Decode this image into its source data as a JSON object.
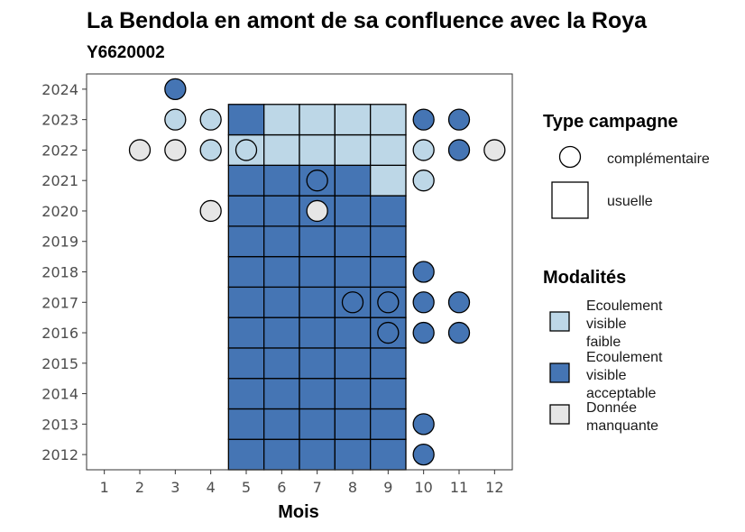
{
  "chart_data": {
    "type": "heatmap",
    "title": "La Bendola en amont de sa confluence avec la Roya",
    "subtitle": "Y6620002",
    "xlabel": "Mois",
    "ylabel": "",
    "x_ticks": [
      1,
      2,
      3,
      4,
      5,
      6,
      7,
      8,
      9,
      10,
      11,
      12
    ],
    "y_ticks": [
      2012,
      2013,
      2014,
      2015,
      2016,
      2017,
      2018,
      2019,
      2020,
      2021,
      2022,
      2023,
      2024
    ],
    "xlim": [
      0.5,
      12.5
    ],
    "ylim": [
      2011.5,
      2024.5
    ],
    "grid": false,
    "legend_position": "right",
    "colors": {
      "faible": "#bdd7e7",
      "acceptable": "#4575b4",
      "manquante": "#e6e6e6"
    },
    "legend": {
      "type_title": "Type campagne",
      "type_items": [
        {
          "shape": "circle",
          "label": "complémentaire"
        },
        {
          "shape": "square",
          "label": "usuelle"
        }
      ],
      "modal_title": "Modalités",
      "modal_items": [
        {
          "key": "faible",
          "lines": [
            "Ecoulement",
            "visible",
            "faible"
          ]
        },
        {
          "key": "acceptable",
          "lines": [
            "Ecoulement",
            "visible",
            "acceptable"
          ]
        },
        {
          "key": "manquante",
          "lines": [
            "Donnée",
            "manquante"
          ]
        }
      ]
    },
    "usuelle": [
      {
        "year": 2012,
        "month": 5,
        "m": "acceptable"
      },
      {
        "year": 2012,
        "month": 6,
        "m": "acceptable"
      },
      {
        "year": 2012,
        "month": 7,
        "m": "acceptable"
      },
      {
        "year": 2012,
        "month": 8,
        "m": "acceptable"
      },
      {
        "year": 2012,
        "month": 9,
        "m": "acceptable"
      },
      {
        "year": 2013,
        "month": 5,
        "m": "acceptable"
      },
      {
        "year": 2013,
        "month": 6,
        "m": "acceptable"
      },
      {
        "year": 2013,
        "month": 7,
        "m": "acceptable"
      },
      {
        "year": 2013,
        "month": 8,
        "m": "acceptable"
      },
      {
        "year": 2013,
        "month": 9,
        "m": "acceptable"
      },
      {
        "year": 2014,
        "month": 5,
        "m": "acceptable"
      },
      {
        "year": 2014,
        "month": 6,
        "m": "acceptable"
      },
      {
        "year": 2014,
        "month": 7,
        "m": "acceptable"
      },
      {
        "year": 2014,
        "month": 8,
        "m": "acceptable"
      },
      {
        "year": 2014,
        "month": 9,
        "m": "acceptable"
      },
      {
        "year": 2015,
        "month": 5,
        "m": "acceptable"
      },
      {
        "year": 2015,
        "month": 6,
        "m": "acceptable"
      },
      {
        "year": 2015,
        "month": 7,
        "m": "acceptable"
      },
      {
        "year": 2015,
        "month": 8,
        "m": "acceptable"
      },
      {
        "year": 2015,
        "month": 9,
        "m": "acceptable"
      },
      {
        "year": 2016,
        "month": 5,
        "m": "acceptable"
      },
      {
        "year": 2016,
        "month": 6,
        "m": "acceptable"
      },
      {
        "year": 2016,
        "month": 7,
        "m": "acceptable"
      },
      {
        "year": 2016,
        "month": 8,
        "m": "acceptable"
      },
      {
        "year": 2016,
        "month": 9,
        "m": "acceptable"
      },
      {
        "year": 2017,
        "month": 5,
        "m": "acceptable"
      },
      {
        "year": 2017,
        "month": 6,
        "m": "acceptable"
      },
      {
        "year": 2017,
        "month": 7,
        "m": "acceptable"
      },
      {
        "year": 2017,
        "month": 8,
        "m": "acceptable"
      },
      {
        "year": 2017,
        "month": 9,
        "m": "acceptable"
      },
      {
        "year": 2018,
        "month": 5,
        "m": "acceptable"
      },
      {
        "year": 2018,
        "month": 6,
        "m": "acceptable"
      },
      {
        "year": 2018,
        "month": 7,
        "m": "acceptable"
      },
      {
        "year": 2018,
        "month": 8,
        "m": "acceptable"
      },
      {
        "year": 2018,
        "month": 9,
        "m": "acceptable"
      },
      {
        "year": 2019,
        "month": 5,
        "m": "acceptable"
      },
      {
        "year": 2019,
        "month": 6,
        "m": "acceptable"
      },
      {
        "year": 2019,
        "month": 7,
        "m": "acceptable"
      },
      {
        "year": 2019,
        "month": 8,
        "m": "acceptable"
      },
      {
        "year": 2019,
        "month": 9,
        "m": "acceptable"
      },
      {
        "year": 2020,
        "month": 5,
        "m": "acceptable"
      },
      {
        "year": 2020,
        "month": 6,
        "m": "acceptable"
      },
      {
        "year": 2020,
        "month": 7,
        "m": "acceptable"
      },
      {
        "year": 2020,
        "month": 8,
        "m": "acceptable"
      },
      {
        "year": 2020,
        "month": 9,
        "m": "acceptable"
      },
      {
        "year": 2021,
        "month": 5,
        "m": "acceptable"
      },
      {
        "year": 2021,
        "month": 6,
        "m": "acceptable"
      },
      {
        "year": 2021,
        "month": 7,
        "m": "acceptable"
      },
      {
        "year": 2021,
        "month": 8,
        "m": "acceptable"
      },
      {
        "year": 2021,
        "month": 9,
        "m": "faible"
      },
      {
        "year": 2022,
        "month": 5,
        "m": "faible"
      },
      {
        "year": 2022,
        "month": 6,
        "m": "faible"
      },
      {
        "year": 2022,
        "month": 7,
        "m": "faible"
      },
      {
        "year": 2022,
        "month": 8,
        "m": "faible"
      },
      {
        "year": 2022,
        "month": 9,
        "m": "faible"
      },
      {
        "year": 2023,
        "month": 5,
        "m": "acceptable"
      },
      {
        "year": 2023,
        "month": 6,
        "m": "faible"
      },
      {
        "year": 2023,
        "month": 7,
        "m": "faible"
      },
      {
        "year": 2023,
        "month": 8,
        "m": "faible"
      },
      {
        "year": 2023,
        "month": 9,
        "m": "faible"
      }
    ],
    "complementaire": [
      {
        "year": 2024,
        "month": 3,
        "m": "acceptable"
      },
      {
        "year": 2023,
        "month": 3,
        "m": "faible"
      },
      {
        "year": 2023,
        "month": 4,
        "m": "faible"
      },
      {
        "year": 2023,
        "month": 10,
        "m": "acceptable"
      },
      {
        "year": 2023,
        "month": 11,
        "m": "acceptable"
      },
      {
        "year": 2022,
        "month": 2,
        "m": "manquante"
      },
      {
        "year": 2022,
        "month": 3,
        "m": "manquante"
      },
      {
        "year": 2022,
        "month": 4,
        "m": "faible"
      },
      {
        "year": 2022,
        "month": 5,
        "m": "faible"
      },
      {
        "year": 2022,
        "month": 10,
        "m": "faible"
      },
      {
        "year": 2022,
        "month": 11,
        "m": "acceptable"
      },
      {
        "year": 2022,
        "month": 12,
        "m": "manquante"
      },
      {
        "year": 2021,
        "month": 7,
        "m": "acceptable"
      },
      {
        "year": 2021,
        "month": 10,
        "m": "faible"
      },
      {
        "year": 2020,
        "month": 4,
        "m": "manquante"
      },
      {
        "year": 2020,
        "month": 7,
        "m": "manquante"
      },
      {
        "year": 2018,
        "month": 10,
        "m": "acceptable"
      },
      {
        "year": 2017,
        "month": 8,
        "m": "acceptable"
      },
      {
        "year": 2017,
        "month": 9,
        "m": "acceptable"
      },
      {
        "year": 2017,
        "month": 10,
        "m": "acceptable"
      },
      {
        "year": 2017,
        "month": 11,
        "m": "acceptable"
      },
      {
        "year": 2016,
        "month": 9,
        "m": "acceptable"
      },
      {
        "year": 2016,
        "month": 10,
        "m": "acceptable"
      },
      {
        "year": 2016,
        "month": 11,
        "m": "acceptable"
      },
      {
        "year": 2013,
        "month": 10,
        "m": "acceptable"
      },
      {
        "year": 2012,
        "month": 10,
        "m": "acceptable"
      }
    ]
  }
}
